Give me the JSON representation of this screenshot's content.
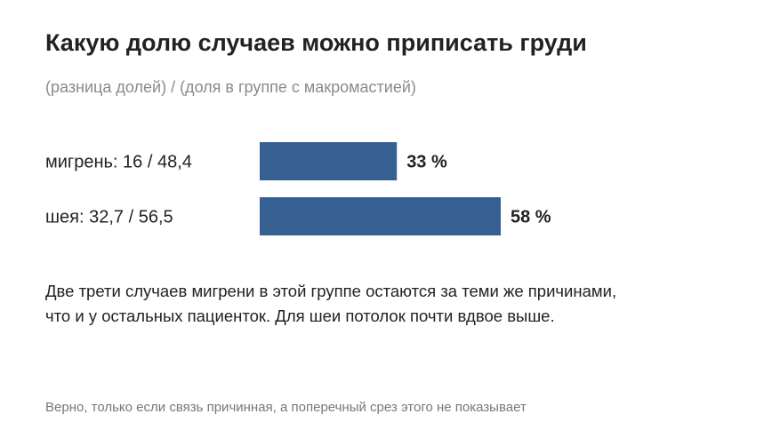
{
  "title": "Какую долю случаев можно приписать груди",
  "subtitle": "(разница долей) / (доля в группе с макромастией)",
  "note": {
    "line1": "Две трети случаев мигрени в этой группе остаются за теми же причинами,",
    "line2": "что и у остальных пациенток. Для шеи потолок почти вдвое выше."
  },
  "footer": "Верно, только если связь причинная, а поперечный срез этого не показывает",
  "colors": {
    "bar": "#376092",
    "text": "#222222",
    "subtle": "#8a8a8a"
  },
  "chart_data": {
    "type": "bar",
    "orientation": "horizontal",
    "categories": [
      "мигрень: 16 / 48,4",
      "шея: 32,7 / 56,5"
    ],
    "values": [
      33,
      58
    ],
    "value_labels": [
      "33 %",
      "58 %"
    ],
    "unit": "%",
    "xlim": [
      0,
      100
    ],
    "grid": false,
    "legend": "none"
  }
}
